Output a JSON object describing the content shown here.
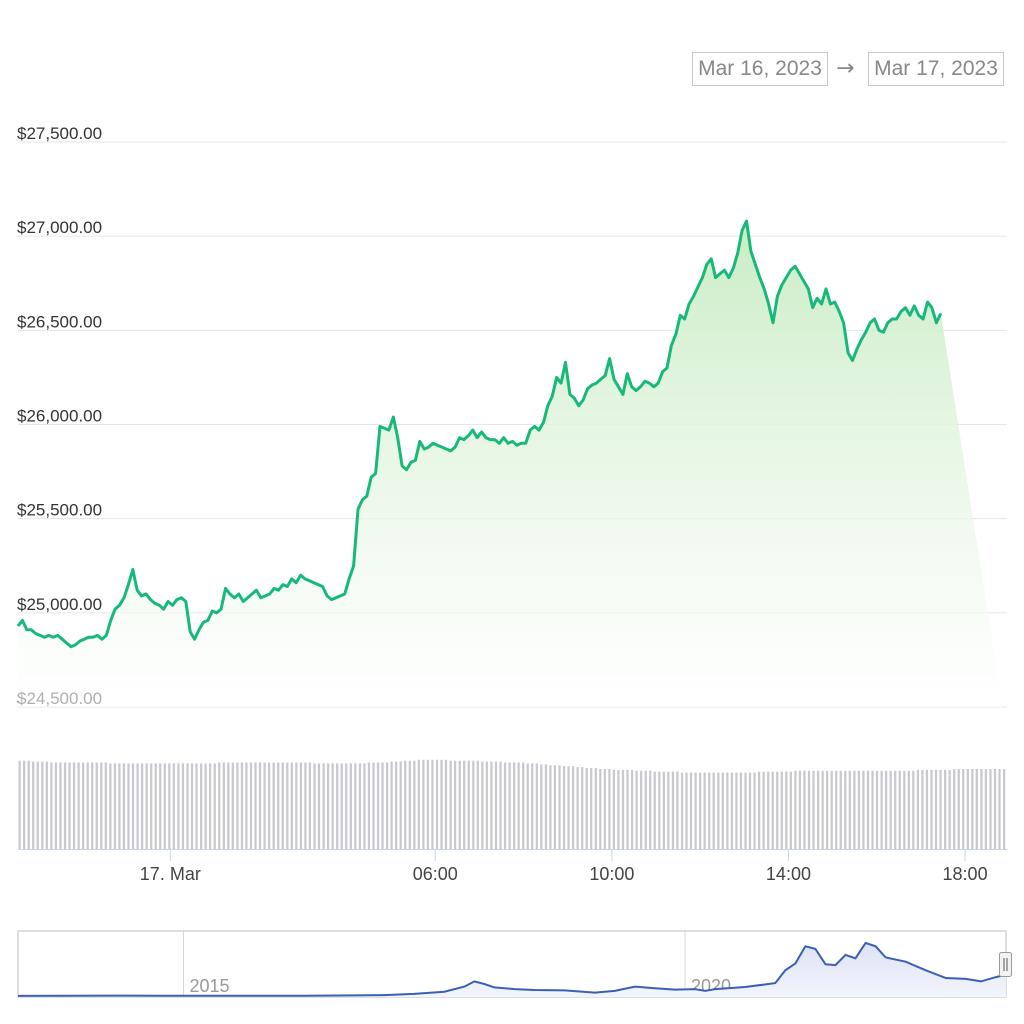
{
  "range_selector": {
    "from": "Mar 16, 2023",
    "arrow": "→",
    "to": "Mar 17, 2023"
  },
  "colors": {
    "price_line": "#16b979",
    "area_top": "#c9ecc4",
    "grid": "#e6e6e6",
    "volume": "#c8c8d0",
    "navigator_line": "#3a5fb5",
    "navigator_fill": "#eef0fa"
  },
  "chart_data": [
    {
      "type": "area",
      "ylim": [
        24500,
        27500
      ],
      "yticks": [
        24500,
        25000,
        25500,
        26000,
        26500,
        27000,
        27500
      ],
      "ytick_labels": [
        "$24,500.00",
        "$25,000.00",
        "$25,500.00",
        "$26,000.00",
        "$26,500.00",
        "$27,000.00",
        "$27,500.00"
      ],
      "x_range_hours": [
        -3.45,
        18.95
      ],
      "xticks": [
        {
          "label": "17. Mar",
          "hour": 0
        },
        {
          "label": "06:00",
          "hour": 6
        },
        {
          "label": "10:00",
          "hour": 10
        },
        {
          "label": "14:00",
          "hour": 14
        },
        {
          "label": "18:00",
          "hour": 18
        }
      ],
      "x_hours": [
        -3.45,
        -3.35,
        -3.25,
        -3.15,
        -3.05,
        -2.95,
        -2.85,
        -2.75,
        -2.65,
        -2.55,
        -2.45,
        -2.35,
        -2.25,
        -2.15,
        -2.05,
        -1.95,
        -1.85,
        -1.75,
        -1.65,
        -1.55,
        -1.45,
        -1.35,
        -1.25,
        -1.15,
        -1.05,
        -0.95,
        -0.85,
        -0.75,
        -0.65,
        -0.55,
        -0.45,
        -0.35,
        -0.25,
        -0.15,
        -0.05,
        0.05,
        0.15,
        0.25,
        0.35,
        0.45,
        0.55,
        0.65,
        0.75,
        0.85,
        0.95,
        1.05,
        1.15,
        1.25,
        1.35,
        1.45,
        1.55,
        1.65,
        1.75,
        1.85,
        1.95,
        2.05,
        2.15,
        2.25,
        2.35,
        2.45,
        2.55,
        2.65,
        2.75,
        2.85,
        2.95,
        3.05,
        3.15,
        3.25,
        3.35,
        3.45,
        3.55,
        3.65,
        3.75,
        3.85,
        3.95,
        4.05,
        4.15,
        4.25,
        4.35,
        4.45,
        4.55,
        4.65,
        4.75,
        4.85,
        4.95,
        5.05,
        5.15,
        5.25,
        5.35,
        5.45,
        5.55,
        5.65,
        5.75,
        5.85,
        5.95,
        6.05,
        6.15,
        6.25,
        6.35,
        6.45,
        6.55,
        6.65,
        6.75,
        6.85,
        6.95,
        7.05,
        7.15,
        7.25,
        7.35,
        7.45,
        7.55,
        7.65,
        7.75,
        7.85,
        7.95,
        8.05,
        8.15,
        8.25,
        8.35,
        8.45,
        8.55,
        8.65,
        8.75,
        8.85,
        8.95,
        9.05,
        9.15,
        9.25,
        9.35,
        9.45,
        9.55,
        9.65,
        9.75,
        9.85,
        9.95,
        10.05,
        10.15,
        10.25,
        10.35,
        10.45,
        10.55,
        10.65,
        10.75,
        10.85,
        10.95,
        11.05,
        11.15,
        11.25,
        11.35,
        11.45,
        11.55,
        11.65,
        11.75,
        11.85,
        11.95,
        12.05,
        12.15,
        12.25,
        12.35,
        12.45,
        12.55,
        12.65,
        12.75,
        12.85,
        12.95,
        13.05,
        13.15,
        13.25,
        13.35,
        13.45,
        13.55,
        13.65,
        13.75,
        13.85,
        13.95,
        14.05,
        14.15,
        14.25,
        14.35,
        14.45,
        14.55,
        14.65,
        14.75,
        14.85,
        14.95,
        15.05,
        15.15,
        15.25,
        15.35,
        15.45,
        15.55,
        15.65,
        15.75,
        15.85,
        15.95,
        16.05,
        16.15,
        16.25,
        16.35,
        16.45,
        16.55,
        16.65,
        16.75,
        16.85,
        16.95,
        17.05,
        17.15,
        17.25,
        17.35,
        17.45,
        17.55,
        17.65,
        17.75,
        17.85,
        17.95,
        18.05,
        18.15,
        18.25,
        18.35,
        18.45,
        18.55,
        18.65,
        18.75,
        18.85
      ],
      "series": [
        {
          "values": [
            24930,
            24960,
            24910,
            24910,
            24890,
            24880,
            24870,
            24880,
            24870,
            24880,
            24860,
            24840,
            24820,
            24830,
            24850,
            24860,
            24870,
            24870,
            24880,
            24860,
            24880,
            24960,
            25020,
            25040,
            25080,
            25150,
            25230,
            25120,
            25090,
            25100,
            25070,
            25050,
            25040,
            25020,
            25060,
            25040,
            25070,
            25080,
            25060,
            24900,
            24860,
            24910,
            24950,
            24960,
            25010,
            25000,
            25020,
            25130,
            25100,
            25080,
            25100,
            25060,
            25080,
            25100,
            25120,
            25080,
            25090,
            25100,
            25130,
            25120,
            25150,
            25140,
            25180,
            25160,
            25200,
            25180,
            25170,
            25160,
            25150,
            25140,
            25090,
            25070,
            25080,
            25090,
            25100,
            25180,
            25250,
            25550,
            25600,
            25620,
            25720,
            25740,
            25990,
            25980,
            25970,
            26040,
            25930,
            25780,
            25760,
            25800,
            25810,
            25910,
            25870,
            25880,
            25900,
            25890,
            25880,
            25870,
            25860,
            25880,
            25930,
            25920,
            25940,
            25970,
            25930,
            25960,
            25930,
            25920,
            25920,
            25900,
            25930,
            25900,
            25910,
            25890,
            25900,
            25900,
            25970,
            25990,
            25970,
            26010,
            26100,
            26150,
            26250,
            26220,
            26330,
            26160,
            26140,
            26100,
            26130,
            26190,
            26210,
            26220,
            26240,
            26260,
            26350,
            26240,
            26200,
            26160,
            26270,
            26200,
            26180,
            26200,
            26230,
            26220,
            26200,
            26220,
            26280,
            26300,
            26420,
            26480,
            26580,
            26560,
            26640,
            26680,
            26730,
            26780,
            26850,
            26880,
            26780,
            26800,
            26820,
            26780,
            26830,
            26910,
            27030,
            27080,
            26920,
            26850,
            26780,
            26720,
            26640,
            26540,
            26680,
            26740,
            26780,
            26820,
            26840,
            26800,
            26760,
            26720,
            26620,
            26670,
            26640,
            26720,
            26640,
            26650,
            26600,
            26540,
            26380,
            26340,
            26400,
            26450,
            26490,
            26540,
            26560,
            26500,
            26490,
            26540,
            26560,
            26560,
            26600,
            26620,
            26580,
            26630,
            26580,
            26560,
            26650,
            26620,
            26540,
            26590
          ]
        }
      ]
    },
    {
      "type": "bar",
      "series": [
        {
          "values": [
            96,
            96,
            96,
            95,
            95,
            95,
            95,
            94,
            94,
            94,
            94,
            94,
            94,
            94,
            94,
            94,
            94,
            94,
            94,
            94,
            93,
            93,
            93,
            93,
            93,
            93,
            93,
            93,
            93,
            93,
            93,
            93,
            93,
            93,
            93,
            93,
            93,
            93,
            93,
            93,
            93,
            93,
            93,
            93,
            94,
            94,
            94,
            94,
            94,
            94,
            94,
            94,
            94,
            94,
            94,
            94,
            94,
            94,
            94,
            94,
            94,
            94,
            94,
            94,
            94,
            93,
            93,
            93,
            93,
            93,
            93,
            93,
            93,
            93,
            93,
            93,
            93,
            94,
            94,
            94,
            94,
            94,
            95,
            95,
            95,
            96,
            96,
            96,
            97,
            97,
            97,
            97,
            97,
            97,
            97,
            96,
            96,
            96,
            96,
            96,
            96,
            96,
            95,
            95,
            95,
            95,
            95,
            94,
            94,
            94,
            94,
            94,
            93,
            93,
            93,
            92,
            92,
            91,
            91,
            91,
            90,
            90,
            90,
            89,
            89,
            88,
            88,
            88,
            87,
            87,
            87,
            86,
            86,
            86,
            86,
            86,
            85,
            85,
            85,
            85,
            84,
            84,
            84,
            84,
            84,
            84,
            83,
            83,
            83,
            83,
            83,
            83,
            83,
            83,
            83,
            83,
            83,
            83,
            83,
            83,
            83,
            83,
            83,
            84,
            84,
            84,
            84,
            84,
            84,
            84,
            84,
            85,
            85,
            85,
            85,
            85,
            85,
            85,
            85,
            85,
            85,
            85,
            85,
            85,
            85,
            85,
            85,
            85,
            85,
            85,
            85,
            85,
            85,
            85,
            85,
            85,
            85,
            85,
            86,
            86,
            86,
            86,
            86,
            86,
            86,
            86,
            87,
            87,
            87,
            87,
            87,
            87,
            87,
            87,
            87,
            87,
            87,
            87
          ]
        }
      ]
    },
    {
      "type": "line",
      "xticks": [
        {
          "label": "2015",
          "year": 2015
        },
        {
          "label": "2020",
          "year": 2020
        }
      ],
      "x_range_years": [
        2013.35,
        2023.2
      ],
      "series": [
        {
          "x": [
            2013.35,
            2013.8,
            2014.3,
            2014.8,
            2015.2,
            2015.7,
            2016.2,
            2016.7,
            2017.0,
            2017.3,
            2017.6,
            2017.8,
            2017.9,
            2018.0,
            2018.1,
            2018.3,
            2018.5,
            2018.8,
            2019.1,
            2019.3,
            2019.5,
            2019.7,
            2019.9,
            2020.1,
            2020.2,
            2020.3,
            2020.6,
            2020.9,
            2021.0,
            2021.1,
            2021.2,
            2021.3,
            2021.4,
            2021.5,
            2021.6,
            2021.7,
            2021.8,
            2021.9,
            2022.0,
            2022.2,
            2022.4,
            2022.6,
            2022.8,
            2022.95,
            2023.1,
            2023.2
          ],
          "values": [
            100,
            200,
            500,
            400,
            300,
            250,
            400,
            700,
            1000,
            2500,
            5000,
            11000,
            17000,
            14000,
            10000,
            8000,
            7000,
            6500,
            4000,
            6000,
            11000,
            9000,
            7500,
            8000,
            6000,
            8000,
            10500,
            15000,
            30000,
            38000,
            58000,
            55000,
            37000,
            36000,
            48000,
            44000,
            62000,
            58000,
            45000,
            40000,
            30000,
            21000,
            20000,
            17000,
            22000,
            25000
          ]
        }
      ]
    }
  ]
}
